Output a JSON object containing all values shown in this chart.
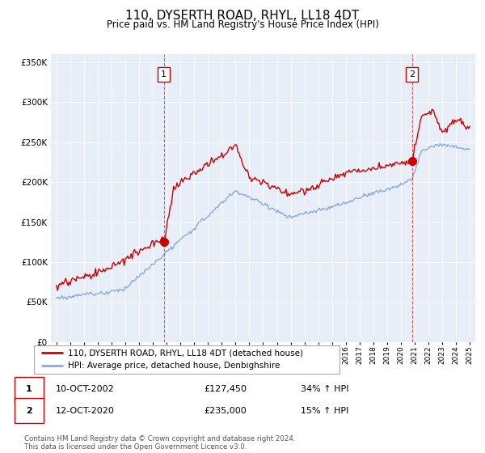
{
  "title": "110, DYSERTH ROAD, RHYL, LL18 4DT",
  "subtitle": "Price paid vs. HM Land Registry's House Price Index (HPI)",
  "legend_line1": "110, DYSERTH ROAD, RHYL, LL18 4DT (detached house)",
  "legend_line2": "HPI: Average price, detached house, Denbighshire",
  "sale1_date": "10-OCT-2002",
  "sale1_price": "£127,450",
  "sale1_label": "34% ↑ HPI",
  "sale1_year": 2002.8,
  "sale1_price_val": 127450,
  "sale2_date": "12-OCT-2020",
  "sale2_price": "£235,000",
  "sale2_label": "15% ↑ HPI",
  "sale2_year": 2020.8,
  "sale2_price_val": 235000,
  "footer": "Contains HM Land Registry data © Crown copyright and database right 2024.\nThis data is licensed under the Open Government Licence v3.0.",
  "red_color": "#cc0000",
  "blue_color": "#88aadd",
  "bg_color": "#e8eef8",
  "ylim_max": 360000,
  "xlim_start": 1994.6,
  "xlim_end": 2025.4
}
